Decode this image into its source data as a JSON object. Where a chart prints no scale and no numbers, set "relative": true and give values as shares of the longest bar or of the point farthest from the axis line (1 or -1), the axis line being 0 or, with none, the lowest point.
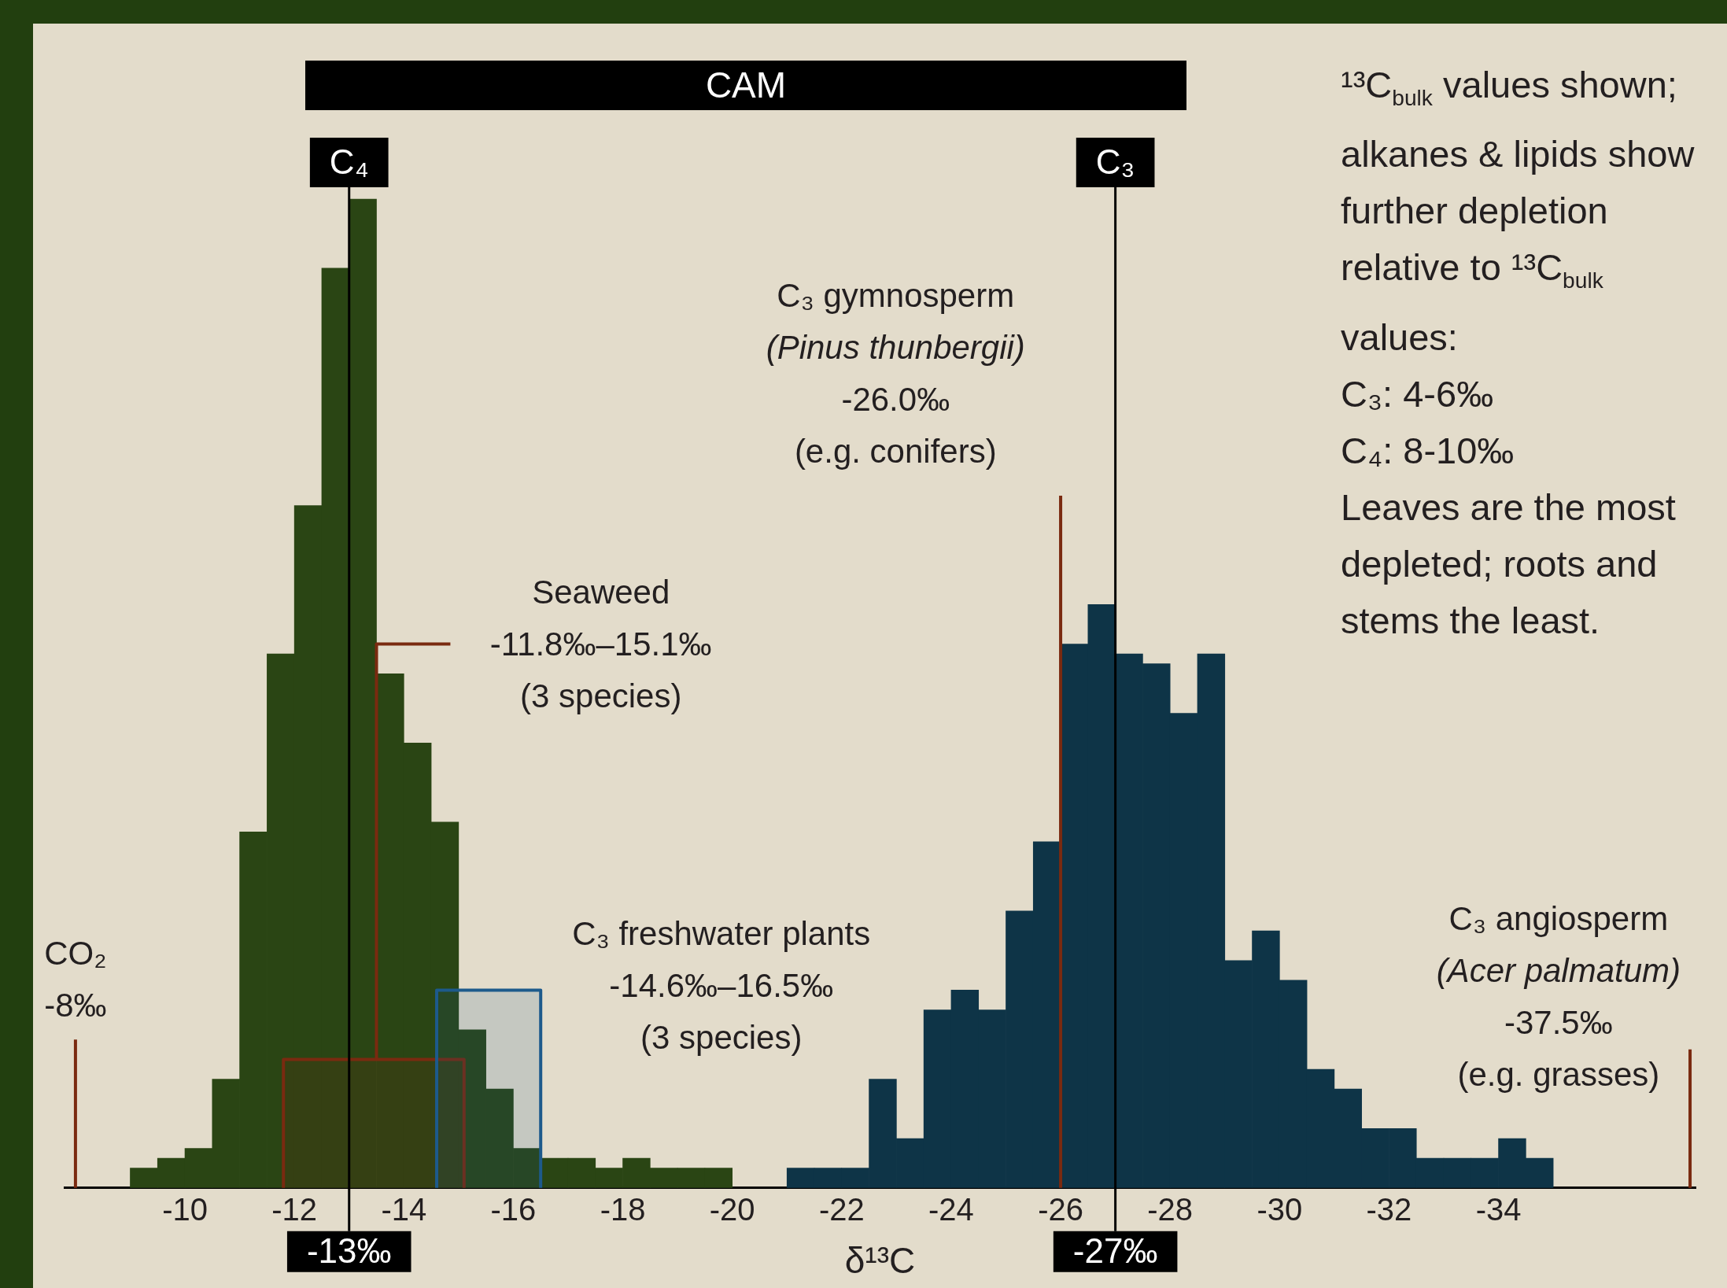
{
  "chart_data": {
    "type": "bar",
    "xlabel": "δ¹³C",
    "relative": true,
    "x": [
      -9.25,
      -9.75,
      -10.25,
      -10.75,
      -11.25,
      -11.75,
      -12.25,
      -12.75,
      -13.25,
      -13.75,
      -14.25,
      -14.75,
      -15.25,
      -15.75,
      -16.25,
      -16.75,
      -17.25,
      -17.75,
      -18.25,
      -18.75,
      -19.25,
      -19.75,
      -20.25,
      -20.75,
      -21.25,
      -21.75,
      -22.25,
      -22.75,
      -23.25,
      -23.75,
      -24.25,
      -24.75,
      -25.25,
      -25.75,
      -26.25,
      -26.75,
      -27.25,
      -27.75,
      -28.25,
      -28.75,
      -29.25,
      -29.75,
      -30.25,
      -30.75,
      -31.25,
      -31.75,
      -32.25,
      -32.75,
      -33.25,
      -33.75,
      -34.25,
      -34.75
    ],
    "values": [
      0.02,
      0.03,
      0.04,
      0.11,
      0.36,
      0.54,
      0.69,
      0.93,
      1,
      0.52,
      0.45,
      0.37,
      0.16,
      0.1,
      0.04,
      0.03,
      0.03,
      0.02,
      0.03,
      0.02,
      0.02,
      0.02,
      null,
      null,
      0.02,
      0.02,
      0.02,
      0.11,
      0.05,
      0.18,
      0.2,
      0.18,
      0.28,
      0.35,
      0.55,
      0.59,
      0.54,
      0.53,
      0.48,
      0.54,
      0.23,
      0.26,
      0.21,
      0.12,
      0.1,
      0.06,
      0.06,
      0.03,
      0.03,
      0.03,
      0.05,
      0.03
    ],
    "colors": [
      "#2a4514",
      "#2a4514",
      "#2a4514",
      "#2a4514",
      "#2a4514",
      "#2a4514",
      "#2a4514",
      "#2a4514",
      "#2a4514",
      "#2a4514",
      "#2a4514",
      "#2a4514",
      "#2a4514",
      "#2a4514",
      "#2a4514",
      "#2a4514",
      "#2a4514",
      "#2a4514",
      "#2a4514",
      "#2a4514",
      "#2a4514",
      "#2a4514",
      "#2a4514",
      "#2a4514",
      "#0e3447",
      "#0e3447",
      "#0e3447",
      "#0e3447",
      "#0e3447",
      "#0e3447",
      "#0e3447",
      "#0e3447",
      "#0e3447",
      "#0e3447",
      "#0e3447",
      "#0e3447",
      "#0e3447",
      "#0e3447",
      "#0e3447",
      "#0e3447",
      "#0e3447",
      "#0e3447",
      "#0e3447",
      "#0e3447",
      "#0e3447",
      "#0e3447",
      "#0e3447",
      "#0e3447",
      "#0e3447",
      "#0e3447",
      "#0e3447",
      "#0e3447"
    ],
    "xlim": [
      -7.8,
      -37.6
    ],
    "xticks": [
      -10,
      -12,
      -14,
      -16,
      -18,
      -20,
      -22,
      -24,
      -26,
      -28,
      -30,
      -32,
      -34
    ],
    "ref_lines": [
      {
        "axis": "x",
        "value": -13,
        "label": "C₄"
      },
      {
        "axis": "x",
        "value": -27,
        "label": "C₃"
      },
      {
        "axis": "x",
        "value": -8,
        "label": "CO₂\n-8‰",
        "color": "#7a2a10"
      },
      {
        "axis": "x",
        "value": -26,
        "label": "C₃ gymnosperm\n(Pinus thunbergii)\n-26.0‰\n(e.g. conifers)",
        "color": "#7a2a10"
      },
      {
        "axis": "x",
        "value": -37.5,
        "label": "C₃ angiosperm\n(Acer palmatum)\n-37.5‰\n(e.g. grasses)",
        "color": "#7a2a10"
      }
    ],
    "bands": [
      {
        "axis": "x",
        "from": -11.8,
        "to": -15.1,
        "label": "Seaweed\n-11.8‰–15.1‰\n(3 species)",
        "color": "#7a2a10"
      },
      {
        "axis": "x",
        "from": -14.6,
        "to": -16.5,
        "label": "C₃ freshwater plants\n-14.6‰–16.5‰\n(3 species)",
        "color": "#1d5a8c"
      }
    ],
    "annotations": [
      "-13‰",
      "-27‰",
      "CAM",
      "¹³C$_{bulk}$ values shown; alkanes & lipids show further depletion relative to ¹³C$_{bulk}$ values:\nC₃: 4-6‰\nC₄: 8-10‰\nLeaves are the most depleted; roots and stems the least."
    ]
  }
}
